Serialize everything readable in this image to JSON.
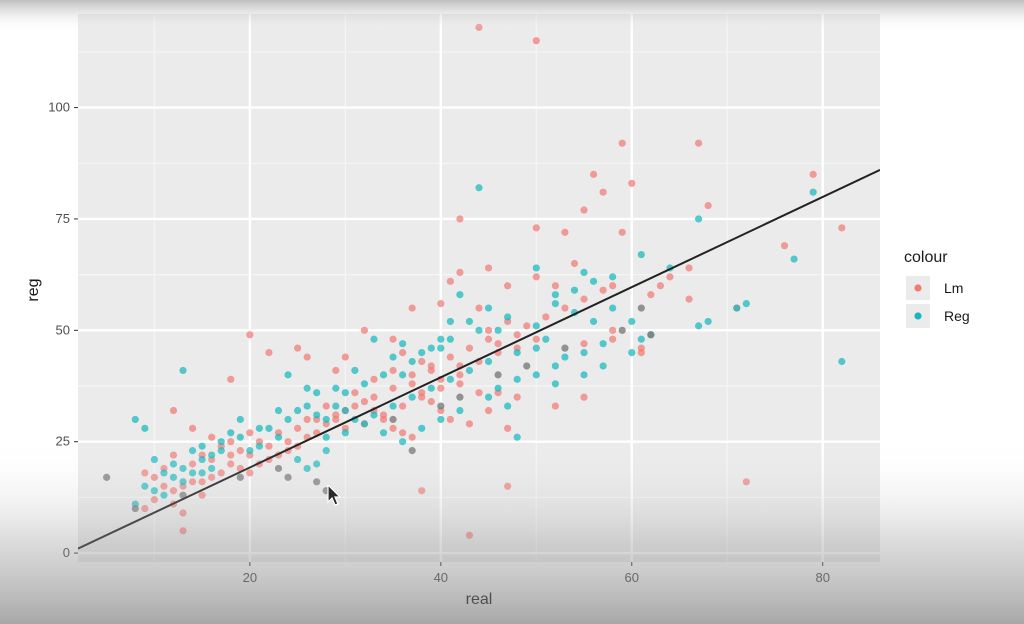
{
  "chart_data": {
    "type": "scatter",
    "title": "",
    "xlabel": "real",
    "ylabel": "reg",
    "xlim": [
      2,
      86
    ],
    "ylim": [
      -2,
      121
    ],
    "x_ticks": [
      20,
      40,
      60,
      80
    ],
    "y_ticks": [
      0,
      25,
      50,
      75,
      100
    ],
    "grid": true,
    "legend": {
      "title": "colour",
      "position": "right"
    },
    "fit_line": {
      "x": [
        2,
        86
      ],
      "y": [
        1,
        86
      ]
    },
    "colors": {
      "Lm": "#f07a74",
      "Reg": "#16b8bd",
      "panel": "#ebebeb",
      "grid_major": "#ffffff",
      "line": "#222222"
    },
    "series": [
      {
        "name": "Lm",
        "points": [
          [
            44,
            118
          ],
          [
            50,
            115
          ],
          [
            59,
            92
          ],
          [
            67,
            92
          ],
          [
            56,
            85
          ],
          [
            60,
            83
          ],
          [
            79,
            85
          ],
          [
            57,
            81
          ],
          [
            68,
            78
          ],
          [
            55,
            77
          ],
          [
            42,
            75
          ],
          [
            59,
            72
          ],
          [
            82,
            73
          ],
          [
            76,
            69
          ],
          [
            50,
            73
          ],
          [
            53,
            72
          ],
          [
            54,
            65
          ],
          [
            45,
            64
          ],
          [
            42,
            63
          ],
          [
            41,
            61
          ],
          [
            47,
            60
          ],
          [
            50,
            62
          ],
          [
            52,
            60
          ],
          [
            58,
            60
          ],
          [
            63,
            60
          ],
          [
            66,
            57
          ],
          [
            71,
            55
          ],
          [
            37,
            55
          ],
          [
            44,
            55
          ],
          [
            32,
            50
          ],
          [
            35,
            48
          ],
          [
            40,
            56
          ],
          [
            45,
            50
          ],
          [
            48,
            49
          ],
          [
            46,
            47
          ],
          [
            50,
            48
          ],
          [
            55,
            47
          ],
          [
            58,
            48
          ],
          [
            61,
            46
          ],
          [
            61,
            45
          ],
          [
            25,
            46
          ],
          [
            26,
            44
          ],
          [
            29,
            41
          ],
          [
            20,
            49
          ],
          [
            22,
            45
          ],
          [
            30,
            44
          ],
          [
            36,
            45
          ],
          [
            38,
            43
          ],
          [
            39,
            41
          ],
          [
            40,
            39
          ],
          [
            42,
            38
          ],
          [
            44,
            36
          ],
          [
            46,
            36
          ],
          [
            48,
            35
          ],
          [
            52,
            33
          ],
          [
            55,
            35
          ],
          [
            42,
            42
          ],
          [
            35,
            41
          ],
          [
            33,
            39
          ],
          [
            37,
            38
          ],
          [
            38,
            36
          ],
          [
            39,
            34
          ],
          [
            40,
            32
          ],
          [
            41,
            30
          ],
          [
            43,
            29
          ],
          [
            45,
            32
          ],
          [
            47,
            28
          ],
          [
            31,
            36
          ],
          [
            32,
            34
          ],
          [
            33,
            32
          ],
          [
            34,
            30
          ],
          [
            35,
            28
          ],
          [
            36,
            27
          ],
          [
            37,
            26
          ],
          [
            30,
            32
          ],
          [
            29,
            30
          ],
          [
            28,
            29
          ],
          [
            27,
            27
          ],
          [
            26,
            26
          ],
          [
            25,
            24
          ],
          [
            24,
            23
          ],
          [
            23,
            22
          ],
          [
            22,
            21
          ],
          [
            21,
            20
          ],
          [
            20,
            18
          ],
          [
            19,
            19
          ],
          [
            18,
            20
          ],
          [
            17,
            18
          ],
          [
            16,
            17
          ],
          [
            15,
            16
          ],
          [
            14,
            16
          ],
          [
            13,
            15
          ],
          [
            12,
            14
          ],
          [
            11,
            15
          ],
          [
            10,
            17
          ],
          [
            9,
            18
          ],
          [
            14,
            20
          ],
          [
            16,
            21
          ],
          [
            18,
            22
          ],
          [
            20,
            22
          ],
          [
            22,
            24
          ],
          [
            24,
            25
          ],
          [
            26,
            30
          ],
          [
            28,
            33
          ],
          [
            30,
            28
          ],
          [
            32,
            29
          ],
          [
            34,
            31
          ],
          [
            36,
            33
          ],
          [
            38,
            35
          ],
          [
            40,
            37
          ],
          [
            42,
            40
          ],
          [
            44,
            43
          ],
          [
            46,
            45
          ],
          [
            48,
            46
          ],
          [
            18,
            39
          ],
          [
            12,
            32
          ],
          [
            14,
            28
          ],
          [
            16,
            26
          ],
          [
            18,
            25
          ],
          [
            20,
            27
          ],
          [
            13,
            9
          ],
          [
            13,
            5
          ],
          [
            38,
            14
          ],
          [
            47,
            15
          ],
          [
            72,
            16
          ],
          [
            43,
            4
          ],
          [
            12,
            22
          ],
          [
            11,
            19
          ],
          [
            15,
            22
          ],
          [
            17,
            24
          ],
          [
            19,
            23
          ],
          [
            21,
            25
          ],
          [
            23,
            27
          ],
          [
            25,
            28
          ],
          [
            27,
            30
          ],
          [
            29,
            31
          ],
          [
            31,
            33
          ],
          [
            33,
            35
          ],
          [
            35,
            37
          ],
          [
            37,
            40
          ],
          [
            39,
            42
          ],
          [
            41,
            44
          ],
          [
            43,
            46
          ],
          [
            45,
            48
          ],
          [
            47,
            52
          ],
          [
            49,
            51
          ],
          [
            51,
            53
          ],
          [
            53,
            55
          ],
          [
            55,
            57
          ],
          [
            57,
            59
          ],
          [
            10,
            12
          ],
          [
            9,
            10
          ],
          [
            12,
            11
          ],
          [
            15,
            13
          ],
          [
            58,
            50
          ],
          [
            62,
            58
          ],
          [
            64,
            62
          ],
          [
            66,
            64
          ]
        ]
      },
      {
        "name": "Reg",
        "points": [
          [
            44,
            82
          ],
          [
            79,
            81
          ],
          [
            67,
            75
          ],
          [
            77,
            66
          ],
          [
            82,
            43
          ],
          [
            71,
            55
          ],
          [
            72,
            56
          ],
          [
            67,
            51
          ],
          [
            68,
            52
          ],
          [
            62,
            49
          ],
          [
            61,
            48
          ],
          [
            55,
            63
          ],
          [
            52,
            58
          ],
          [
            50,
            64
          ],
          [
            52,
            56
          ],
          [
            54,
            54
          ],
          [
            56,
            52
          ],
          [
            58,
            55
          ],
          [
            60,
            52
          ],
          [
            57,
            47
          ],
          [
            55,
            45
          ],
          [
            52,
            42
          ],
          [
            50,
            40
          ],
          [
            48,
            45
          ],
          [
            46,
            50
          ],
          [
            47,
            53
          ],
          [
            44,
            50
          ],
          [
            42,
            58
          ],
          [
            41,
            52
          ],
          [
            40,
            48
          ],
          [
            38,
            45
          ],
          [
            36,
            47
          ],
          [
            35,
            44
          ],
          [
            33,
            48
          ],
          [
            34,
            40
          ],
          [
            32,
            38
          ],
          [
            30,
            36
          ],
          [
            29,
            33
          ],
          [
            28,
            30
          ],
          [
            27,
            31
          ],
          [
            26,
            33
          ],
          [
            25,
            32
          ],
          [
            24,
            30
          ],
          [
            23,
            32
          ],
          [
            22,
            28
          ],
          [
            21,
            24
          ],
          [
            20,
            23
          ],
          [
            19,
            26
          ],
          [
            18,
            27
          ],
          [
            17,
            23
          ],
          [
            16,
            22
          ],
          [
            15,
            21
          ],
          [
            14,
            18
          ],
          [
            13,
            19
          ],
          [
            12,
            20
          ],
          [
            11,
            18
          ],
          [
            10,
            21
          ],
          [
            9,
            15
          ],
          [
            8,
            11
          ],
          [
            9,
            28
          ],
          [
            8,
            30
          ],
          [
            13,
            41
          ],
          [
            15,
            24
          ],
          [
            16,
            19
          ],
          [
            25,
            21
          ],
          [
            26,
            19
          ],
          [
            27,
            20
          ],
          [
            28,
            23
          ],
          [
            24,
            40
          ],
          [
            26,
            37
          ],
          [
            30,
            32
          ],
          [
            31,
            30
          ],
          [
            33,
            31
          ],
          [
            35,
            33
          ],
          [
            37,
            35
          ],
          [
            39,
            37
          ],
          [
            41,
            39
          ],
          [
            43,
            41
          ],
          [
            45,
            43
          ],
          [
            46,
            37
          ],
          [
            48,
            39
          ],
          [
            50,
            46
          ],
          [
            51,
            48
          ],
          [
            53,
            44
          ],
          [
            55,
            40
          ],
          [
            57,
            42
          ],
          [
            60,
            45
          ],
          [
            48,
            26
          ],
          [
            52,
            38
          ],
          [
            34,
            27
          ],
          [
            36,
            25
          ],
          [
            38,
            28
          ],
          [
            40,
            30
          ],
          [
            42,
            32
          ],
          [
            45,
            35
          ],
          [
            47,
            33
          ],
          [
            23,
            26
          ],
          [
            21,
            28
          ],
          [
            19,
            30
          ],
          [
            17,
            25
          ],
          [
            14,
            23
          ],
          [
            12,
            17
          ],
          [
            11,
            13
          ],
          [
            10,
            14
          ],
          [
            13,
            16
          ],
          [
            15,
            18
          ],
          [
            36,
            40
          ],
          [
            37,
            43
          ],
          [
            39,
            46
          ],
          [
            41,
            48
          ],
          [
            43,
            52
          ],
          [
            45,
            55
          ],
          [
            28,
            26
          ],
          [
            30,
            27
          ],
          [
            32,
            29
          ],
          [
            29,
            37
          ],
          [
            31,
            41
          ],
          [
            27,
            36
          ],
          [
            40,
            46
          ],
          [
            50,
            51
          ],
          [
            54,
            59
          ],
          [
            56,
            61
          ],
          [
            58,
            62
          ],
          [
            61,
            67
          ],
          [
            64,
            64
          ]
        ]
      }
    ],
    "highlight_points": [
      [
        5,
        17
      ],
      [
        24,
        17
      ],
      [
        27,
        16
      ],
      [
        28,
        14
      ],
      [
        37,
        23
      ],
      [
        61,
        55
      ],
      [
        62,
        49
      ],
      [
        8,
        10
      ],
      [
        13,
        13
      ],
      [
        19,
        17
      ],
      [
        23,
        19
      ],
      [
        35,
        30
      ],
      [
        40,
        33
      ],
      [
        42,
        35
      ],
      [
        46,
        40
      ],
      [
        49,
        42
      ],
      [
        53,
        46
      ],
      [
        59,
        50
      ]
    ]
  }
}
